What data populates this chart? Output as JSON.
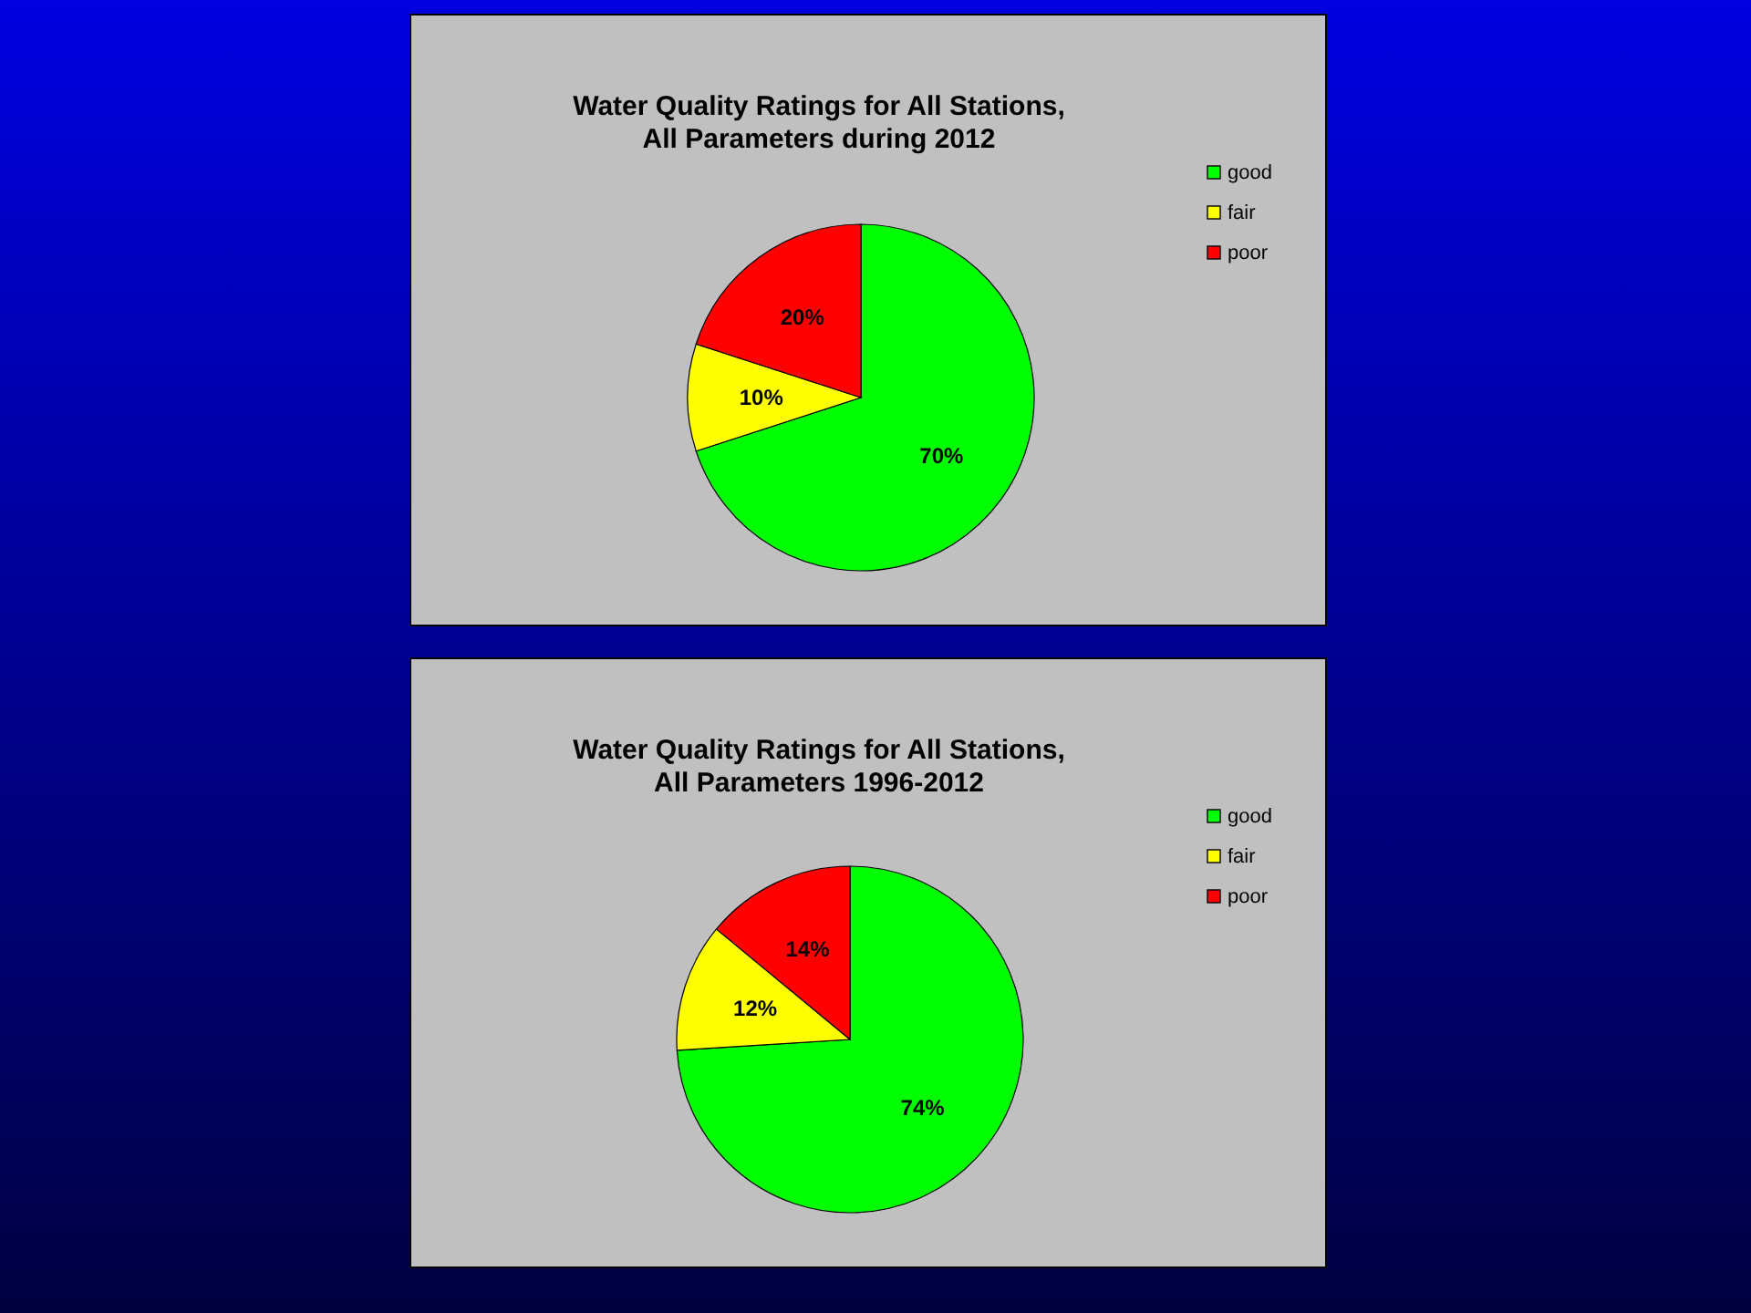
{
  "chart_data": [
    {
      "type": "pie",
      "title": "Water Quality Ratings for All Stations, All Parameters during 2012",
      "categories": [
        "good",
        "fair",
        "poor"
      ],
      "values": [
        70,
        10,
        20
      ],
      "value_labels": [
        "70%",
        "10%",
        "20%"
      ],
      "colors": [
        "#00ff00",
        "#ffff00",
        "#ff0000"
      ],
      "legend": "top right"
    },
    {
      "type": "pie",
      "title": "Water Quality Ratings for All Stations, All Parameters 1996-2012",
      "categories": [
        "good",
        "fair",
        "poor"
      ],
      "values": [
        74,
        12,
        14
      ],
      "value_labels": [
        "74%",
        "12%",
        "14%"
      ],
      "colors": [
        "#00ff00",
        "#ffff00",
        "#ff0000"
      ],
      "legend": "top right"
    }
  ]
}
